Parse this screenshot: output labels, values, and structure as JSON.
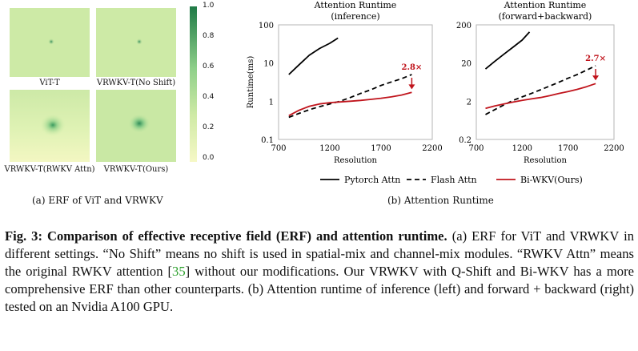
{
  "erf_panel": {
    "labels": [
      "ViT-T",
      "VRWKV-T(No Shift)",
      "VRWKV-T(RWKV Attn)",
      "VRWKV-T(Ours)"
    ],
    "colorbar_ticks": [
      "1.0",
      "0.8",
      "0.6",
      "0.4",
      "0.2",
      "0.0"
    ],
    "colors": {
      "low": "#f4f7c4",
      "mid": "#c7e8a8",
      "high": "#2e8b57"
    }
  },
  "subcaptions": {
    "a": "(a) ERF of ViT and VRWKV",
    "b": "(b) Attention Runtime"
  },
  "chart_data": [
    {
      "type": "line",
      "title": "Attention Runtime",
      "subtitle": "(inference)",
      "xlabel": "Resolution",
      "ylabel": "Runtime(ms)",
      "yscale": "log",
      "xlim": [
        700,
        2200
      ],
      "ylim": [
        0.1,
        100
      ],
      "xticks": [
        "700",
        "1200",
        "1700",
        "2200"
      ],
      "yticks": [
        "100",
        "10",
        "1",
        "0.1"
      ],
      "annotation": "2.8×",
      "series": [
        {
          "name": "Pytorch Attn",
          "color": "#000000",
          "dash": "solid",
          "x": [
            800,
            900,
            1000,
            1100,
            1200,
            1280
          ],
          "y": [
            5,
            9,
            16,
            24,
            33,
            45
          ]
        },
        {
          "name": "Flash Attn",
          "color": "#000000",
          "dash": "dashed",
          "x": [
            800,
            900,
            1000,
            1100,
            1200,
            1300,
            1400,
            1500,
            1600,
            1700,
            1800,
            1900,
            2000
          ],
          "y": [
            0.38,
            0.48,
            0.6,
            0.72,
            0.85,
            1.0,
            1.25,
            1.6,
            2.0,
            2.6,
            3.2,
            3.9,
            5.0
          ]
        },
        {
          "name": "Bi-WKV(Ours)",
          "color": "#c0141c",
          "dash": "solid",
          "x": [
            800,
            900,
            1000,
            1100,
            1200,
            1300,
            1400,
            1500,
            1600,
            1700,
            1800,
            1900,
            2000
          ],
          "y": [
            0.42,
            0.58,
            0.74,
            0.85,
            0.92,
            0.96,
            1.0,
            1.05,
            1.12,
            1.2,
            1.3,
            1.45,
            1.7
          ]
        }
      ]
    },
    {
      "type": "line",
      "title": "Attention Runtime",
      "subtitle": "(forward+backward)",
      "xlabel": "Resolution",
      "ylabel": "",
      "yscale": "log",
      "xlim": [
        700,
        2200
      ],
      "ylim": [
        0.2,
        200
      ],
      "xticks": [
        "700",
        "1200",
        "1700",
        "2200"
      ],
      "yticks": [
        "200",
        "20",
        "2",
        "0.2"
      ],
      "annotation": "2.7×",
      "series": [
        {
          "name": "Pytorch Attn",
          "color": "#000000",
          "dash": "solid",
          "x": [
            800,
            900,
            1000,
            1100,
            1200,
            1280
          ],
          "y": [
            14,
            22,
            34,
            52,
            80,
            130
          ]
        },
        {
          "name": "Flash Attn",
          "color": "#000000",
          "dash": "dashed",
          "x": [
            800,
            900,
            1000,
            1100,
            1200,
            1300,
            1400,
            1500,
            1600,
            1700,
            1800,
            1900,
            2000
          ],
          "y": [
            0.9,
            1.2,
            1.6,
            2.1,
            2.6,
            3.2,
            4.0,
            5.0,
            6.3,
            8.0,
            10.0,
            13.0,
            17.0
          ]
        },
        {
          "name": "Bi-WKV(Ours)",
          "color": "#c0141c",
          "dash": "solid",
          "x": [
            800,
            900,
            1000,
            1100,
            1200,
            1300,
            1400,
            1500,
            1600,
            1700,
            1800,
            1900,
            2000
          ],
          "y": [
            1.3,
            1.5,
            1.7,
            1.9,
            2.1,
            2.3,
            2.5,
            2.8,
            3.2,
            3.6,
            4.1,
            4.8,
            5.8
          ]
        }
      ]
    }
  ],
  "legend": [
    {
      "name": "Pytorch Attn",
      "color": "#000000",
      "dash": "solid"
    },
    {
      "name": "Flash Attn",
      "color": "#000000",
      "dash": "dashed"
    },
    {
      "name": "Bi-WKV(Ours)",
      "color": "#c0141c",
      "dash": "solid"
    }
  ],
  "caption": {
    "label": "Fig. 3: Comparison of effective receptive field (ERF) and attention runtime.",
    "part1": "(a) ERF for ViT and VRWKV in different settings. “No Shift” means no shift is used in spatial-mix and channel-mix modules. “RWKV Attn” means the original RWKV attention [",
    "ref": "35",
    "part2": "] without our modifications. Our VRWKV with Q-Shift and Bi-WKV has a more comprehensive ERF than other counterparts. (b) Attention runtime of inference (left) and forward + backward (right) tested on an Nvidia A100 GPU."
  }
}
